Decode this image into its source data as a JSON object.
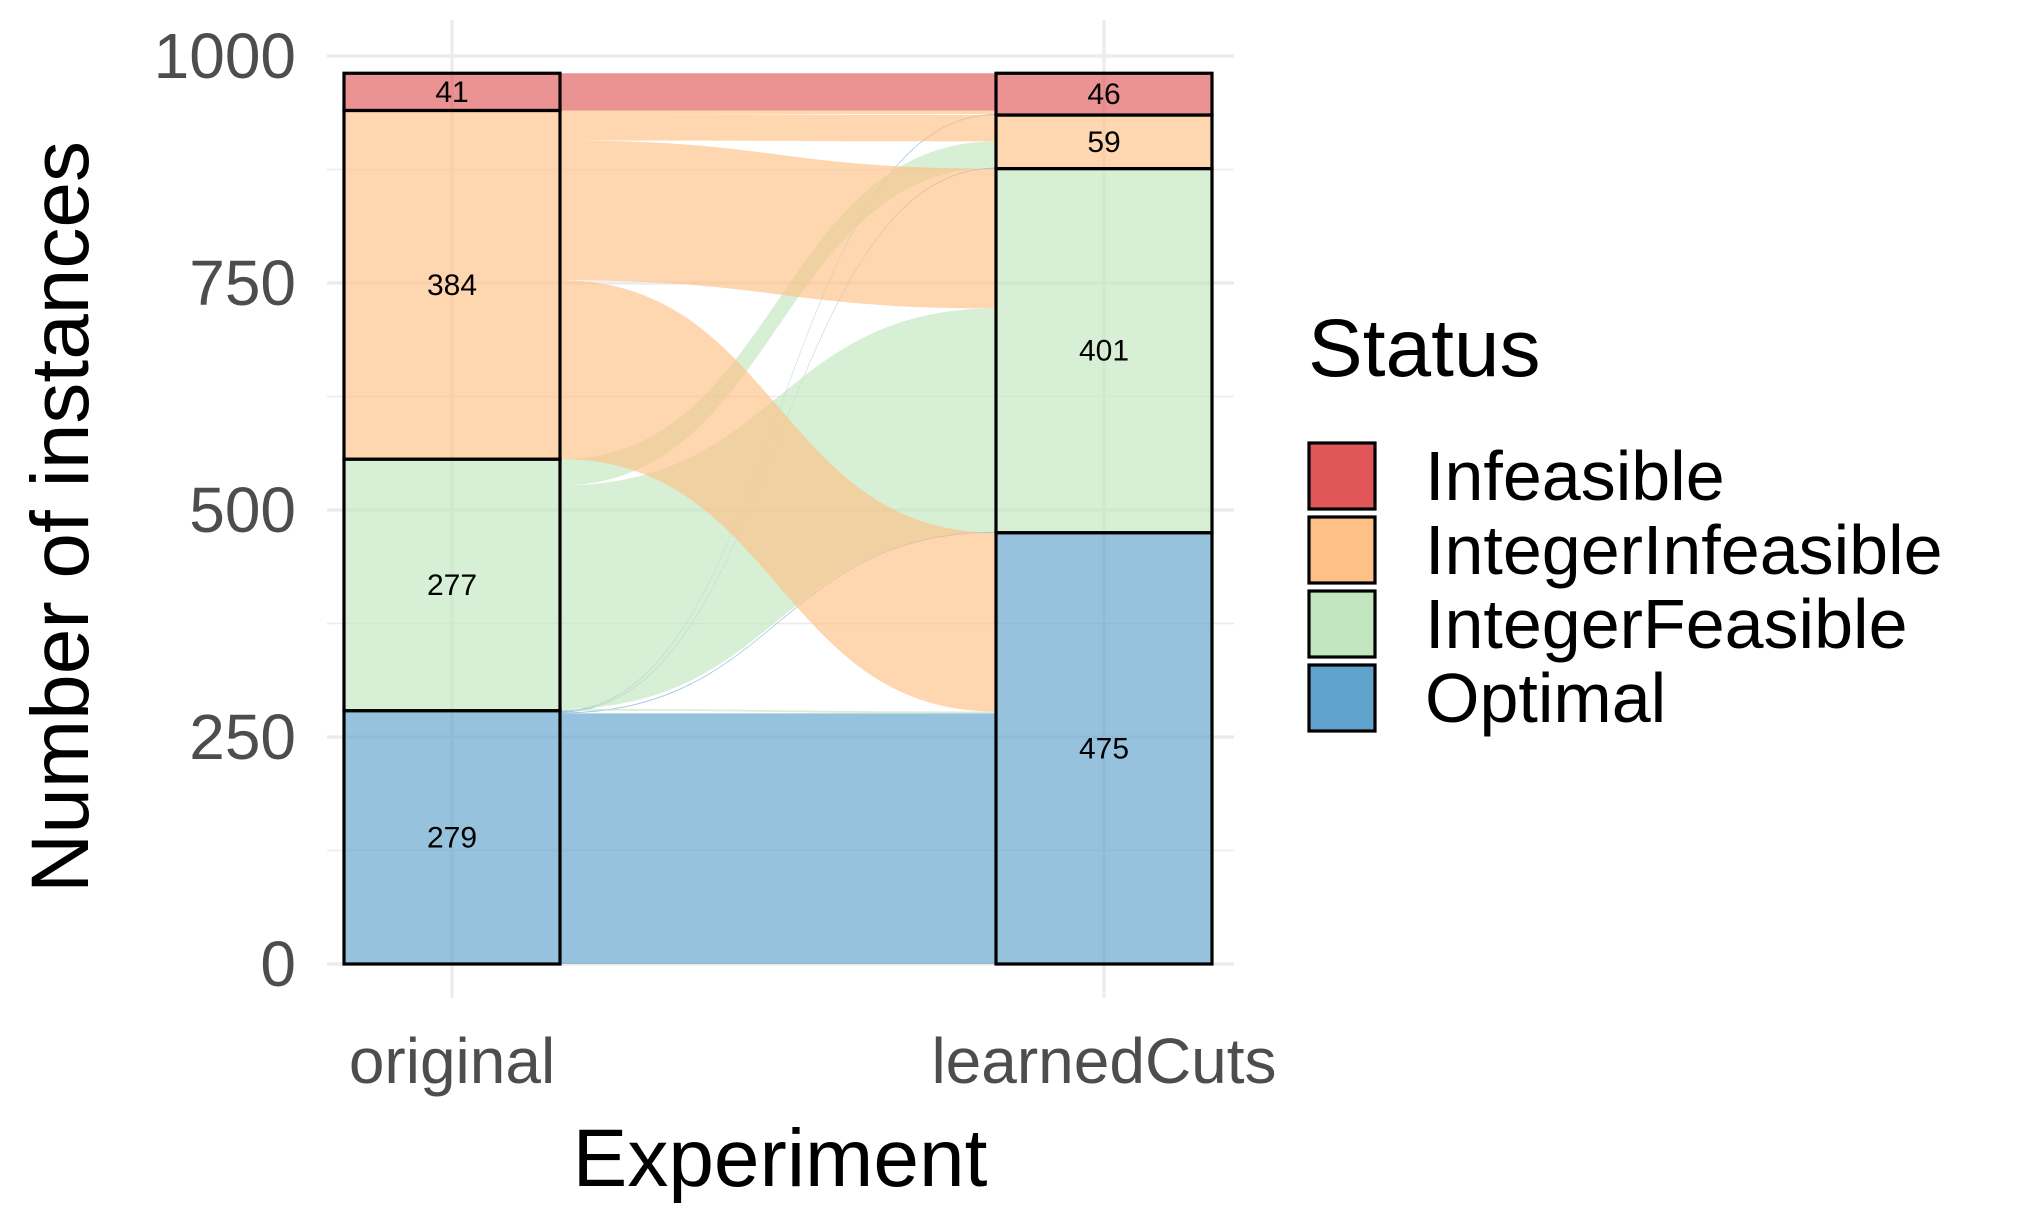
{
  "chart_data": {
    "type": "alluvial",
    "xlabel": "Experiment",
    "ylabel": "Number of instances",
    "categories": [
      "original",
      "learnedCuts"
    ],
    "ylim": [
      0,
      1000
    ],
    "yticks": [
      0,
      250,
      500,
      750,
      1000
    ],
    "grid": true,
    "legend": {
      "title": "Status",
      "position": "right",
      "entries": [
        "Infeasible",
        "IntegerInfeasible",
        "IntegerFeasible",
        "Optimal"
      ]
    },
    "statuses": [
      "Optimal",
      "IntegerFeasible",
      "IntegerInfeasible",
      "Infeasible"
    ],
    "colors": {
      "Infeasible": "#e15759",
      "IntegerInfeasible": "#fdc086",
      "IntegerFeasible": "#c2e6bf",
      "Optimal": "#5fa2cc"
    },
    "stacks": {
      "original": {
        "Optimal": 279,
        "IntegerFeasible": 277,
        "IntegerInfeasible": 384,
        "Infeasible": 41
      },
      "learnedCuts": {
        "Optimal": 475,
        "IntegerFeasible": 401,
        "IntegerInfeasible": 59,
        "Infeasible": 46
      }
    },
    "flows": [
      {
        "from": "Optimal",
        "to": "Optimal",
        "value": 276
      },
      {
        "from": "Optimal",
        "to": "IntegerFeasible",
        "value": 1
      },
      {
        "from": "Optimal",
        "to": "IntegerInfeasible",
        "value": 1
      },
      {
        "from": "Optimal",
        "to": "Infeasible",
        "value": 1
      },
      {
        "from": "IntegerFeasible",
        "to": "Optimal",
        "value": 2
      },
      {
        "from": "IntegerFeasible",
        "to": "IntegerFeasible",
        "value": 246
      },
      {
        "from": "IntegerFeasible",
        "to": "IntegerInfeasible",
        "value": 29
      },
      {
        "from": "IntegerInfeasible",
        "to": "Optimal",
        "value": 197
      },
      {
        "from": "IntegerInfeasible",
        "to": "IntegerFeasible",
        "value": 154
      },
      {
        "from": "IntegerInfeasible",
        "to": "IntegerInfeasible",
        "value": 29
      },
      {
        "from": "IntegerInfeasible",
        "to": "Infeasible",
        "value": 4
      },
      {
        "from": "Infeasible",
        "to": "Infeasible",
        "value": 41
      }
    ]
  }
}
